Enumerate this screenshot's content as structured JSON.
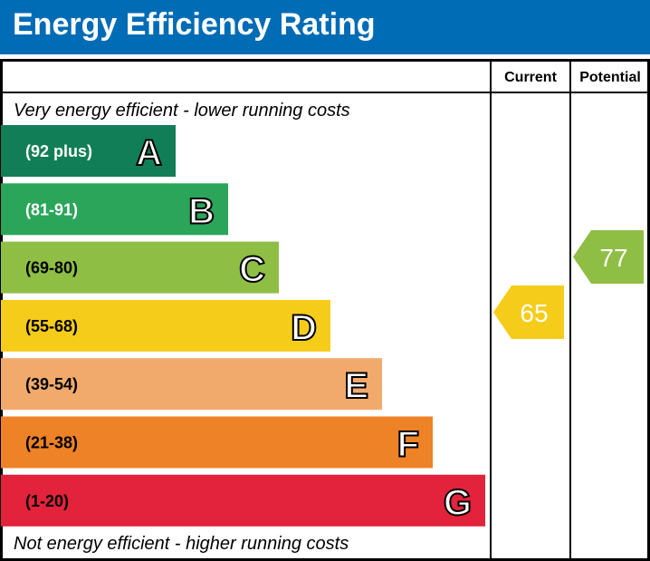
{
  "title": "Energy Efficiency Rating",
  "colors": {
    "header": "#006cb5"
  },
  "chart_data": {
    "type": "bar",
    "title": "Energy Efficiency Rating",
    "columns": [
      "Current",
      "Potential"
    ],
    "top_note": "Very energy efficient - lower running costs",
    "bottom_note": "Not energy efficient - higher running costs",
    "bands": [
      {
        "letter": "A",
        "range": "(92 plus)",
        "color": "#117e57"
      },
      {
        "letter": "B",
        "range": "(81-91)",
        "color": "#2aa55a"
      },
      {
        "letter": "C",
        "range": "(69-80)",
        "color": "#8fbe44"
      },
      {
        "letter": "D",
        "range": "(55-68)",
        "color": "#f6cc1a"
      },
      {
        "letter": "E",
        "range": "(39-54)",
        "color": "#f2aa6c"
      },
      {
        "letter": "F",
        "range": "(21-38)",
        "color": "#ee8227"
      },
      {
        "letter": "G",
        "range": "(1-20)",
        "color": "#e3223b"
      }
    ],
    "current": {
      "value": 65,
      "band": "D",
      "color": "#f6cc1a"
    },
    "potential": {
      "value": 77,
      "band": "C",
      "color": "#8fbe44"
    }
  }
}
